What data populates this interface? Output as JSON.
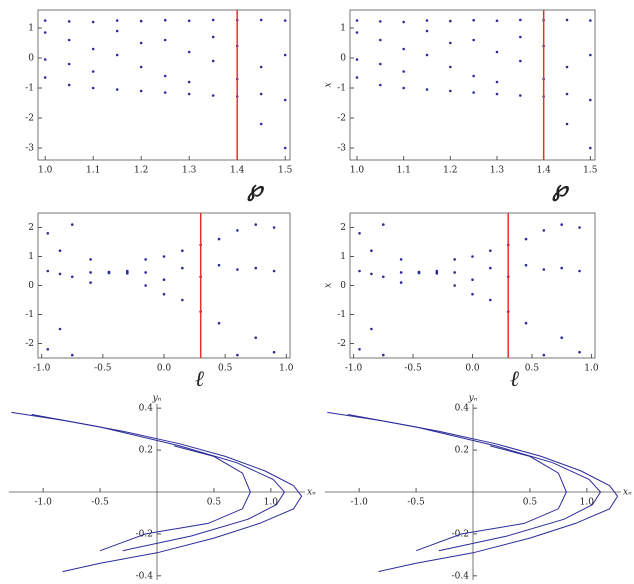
{
  "chart_data": [
    {
      "type": "scatter",
      "xlabel": "℘",
      "xlim": [
        0.985,
        1.51
      ],
      "ylim": [
        -3.4,
        1.6
      ],
      "xticks": [
        {
          "value": 1,
          "label": "1.0"
        },
        {
          "value": 1.1,
          "label": "1.1"
        },
        {
          "value": 1.2,
          "label": "1.2"
        },
        {
          "value": 1.3,
          "label": "1.3"
        },
        {
          "value": 1.4,
          "label": "1.4"
        },
        {
          "value": 1.5,
          "label": "1.5"
        }
      ],
      "yticks": [
        1,
        0,
        -1,
        -2,
        -3
      ],
      "color": "#2b2b9a",
      "vline": 1.4,
      "vline_color": "#e8312a",
      "axes_style": "box",
      "x": [
        1.0,
        1.0,
        1.0,
        1.0,
        1.05,
        1.05,
        1.05,
        1.05,
        1.1,
        1.1,
        1.1,
        1.1,
        1.15,
        1.15,
        1.15,
        1.15,
        1.2,
        1.2,
        1.2,
        1.2,
        1.25,
        1.25,
        1.25,
        1.25,
        1.3,
        1.3,
        1.3,
        1.3,
        1.35,
        1.35,
        1.35,
        1.35,
        1.4,
        1.4,
        1.4,
        1.4,
        1.45,
        1.45,
        1.45,
        1.45,
        1.5,
        1.5,
        1.5,
        1.5
      ],
      "values": [
        1.25,
        0.85,
        -0.05,
        -0.65,
        1.22,
        0.6,
        -0.2,
        -0.9,
        1.2,
        0.3,
        -0.45,
        -1.0,
        1.25,
        0.9,
        0.1,
        -1.05,
        1.23,
        0.5,
        -0.3,
        -1.1,
        1.26,
        0.6,
        -0.6,
        -1.15,
        1.24,
        0.2,
        -0.8,
        -1.2,
        1.27,
        0.7,
        -0.1,
        -1.25,
        1.26,
        0.4,
        -0.7,
        -1.28,
        1.27,
        -0.3,
        -1.2,
        -2.2,
        1.25,
        0.1,
        -1.4,
        -3.0
      ]
    },
    {
      "type": "scatter",
      "xlabel": "℘",
      "ylabel": "x",
      "xlim": [
        0.985,
        1.51
      ],
      "ylim": [
        -3.4,
        1.6
      ],
      "xticks": [
        {
          "value": 1,
          "label": "1.0"
        },
        {
          "value": 1.1,
          "label": "1.1"
        },
        {
          "value": 1.2,
          "label": "1.2"
        },
        {
          "value": 1.3,
          "label": "1.3"
        },
        {
          "value": 1.4,
          "label": "1.4"
        },
        {
          "value": 1.5,
          "label": "1.5"
        }
      ],
      "yticks": [
        1,
        0,
        -1,
        -2,
        -3
      ],
      "color": "#2b2b9a",
      "vline": 1.4,
      "vline_color": "#e8312a",
      "axes_style": "box",
      "x": [
        1.0,
        1.0,
        1.0,
        1.0,
        1.05,
        1.05,
        1.05,
        1.05,
        1.1,
        1.1,
        1.1,
        1.1,
        1.15,
        1.15,
        1.15,
        1.15,
        1.2,
        1.2,
        1.2,
        1.2,
        1.25,
        1.25,
        1.25,
        1.25,
        1.3,
        1.3,
        1.3,
        1.3,
        1.35,
        1.35,
        1.35,
        1.35,
        1.4,
        1.4,
        1.4,
        1.4,
        1.45,
        1.45,
        1.45,
        1.45,
        1.5,
        1.5,
        1.5,
        1.5
      ],
      "values": [
        1.25,
        0.85,
        -0.05,
        -0.65,
        1.22,
        0.6,
        -0.2,
        -0.9,
        1.2,
        0.3,
        -0.45,
        -1.0,
        1.25,
        0.9,
        0.1,
        -1.05,
        1.23,
        0.5,
        -0.3,
        -1.1,
        1.26,
        0.6,
        -0.6,
        -1.15,
        1.24,
        0.2,
        -0.8,
        -1.2,
        1.27,
        0.7,
        -0.1,
        -1.25,
        1.26,
        0.4,
        -0.7,
        -1.28,
        1.27,
        -0.3,
        -1.2,
        -2.2,
        1.25,
        0.1,
        -1.4,
        -3.0
      ]
    },
    {
      "type": "scatter",
      "xlabel": "ℓ",
      "xlim": [
        -1.03,
        1.03
      ],
      "ylim": [
        -2.5,
        2.5
      ],
      "xticks": [
        {
          "value": -1,
          "label": "-1.0"
        },
        {
          "value": -0.5,
          "label": "-0.5"
        },
        {
          "value": 0,
          "label": "0.0"
        },
        0.5,
        {
          "value": 1,
          "label": "1.0"
        }
      ],
      "yticks": [
        2,
        1,
        0,
        -1,
        -2
      ],
      "color": "#2b2b9a",
      "vline": 0.3,
      "vline_color": "#e8312a",
      "axes_style": "box",
      "x": [
        -0.95,
        -0.95,
        -0.95,
        -0.85,
        -0.85,
        -0.85,
        -0.75,
        -0.75,
        -0.75,
        -0.6,
        -0.6,
        -0.6,
        -0.45,
        -0.45,
        -0.45,
        -0.3,
        -0.3,
        -0.3,
        -0.15,
        -0.15,
        -0.15,
        0.0,
        0.0,
        0.0,
        0.15,
        0.15,
        0.15,
        0.3,
        0.3,
        0.3,
        0.45,
        0.45,
        0.45,
        0.6,
        0.6,
        0.6,
        0.75,
        0.75,
        0.75,
        0.9,
        0.9,
        0.9
      ],
      "values": [
        1.8,
        0.5,
        -2.2,
        1.2,
        0.4,
        -1.5,
        2.1,
        0.3,
        -2.4,
        0.9,
        0.45,
        0.1,
        0.47,
        0.45,
        0.43,
        0.5,
        0.45,
        0.42,
        0.9,
        0.0,
        0.45,
        1.0,
        -0.3,
        0.2,
        1.2,
        -0.5,
        0.6,
        1.4,
        -0.9,
        0.3,
        1.6,
        -1.3,
        0.7,
        1.9,
        0.55,
        -2.4,
        2.1,
        0.6,
        -1.8,
        2.0,
        0.5,
        -2.3
      ]
    },
    {
      "type": "scatter",
      "xlabel": "ℓ",
      "ylabel": "x",
      "xlim": [
        -1.03,
        1.03
      ],
      "ylim": [
        -2.5,
        2.5
      ],
      "xticks": [
        {
          "value": -1,
          "label": "-1.0"
        },
        {
          "value": -0.5,
          "label": "-0.5"
        },
        {
          "value": 0,
          "label": "0.0"
        },
        0.5,
        {
          "value": 1,
          "label": "1.0"
        }
      ],
      "yticks": [
        2,
        1,
        0,
        -1,
        -2
      ],
      "color": "#2b2b9a",
      "vline": 0.3,
      "vline_color": "#e8312a",
      "axes_style": "box",
      "x": [
        -0.95,
        -0.95,
        -0.95,
        -0.85,
        -0.85,
        -0.85,
        -0.75,
        -0.75,
        -0.75,
        -0.6,
        -0.6,
        -0.6,
        -0.45,
        -0.45,
        -0.45,
        -0.3,
        -0.3,
        -0.3,
        -0.15,
        -0.15,
        -0.15,
        0.0,
        0.0,
        0.0,
        0.15,
        0.15,
        0.15,
        0.3,
        0.3,
        0.3,
        0.45,
        0.45,
        0.45,
        0.6,
        0.6,
        0.6,
        0.75,
        0.75,
        0.75,
        0.9,
        0.9,
        0.9
      ],
      "values": [
        1.8,
        0.5,
        -2.2,
        1.2,
        0.4,
        -1.5,
        2.1,
        0.3,
        -2.4,
        0.9,
        0.45,
        0.1,
        0.47,
        0.45,
        0.43,
        0.5,
        0.45,
        0.42,
        0.9,
        0.0,
        0.45,
        1.0,
        -0.3,
        0.2,
        1.2,
        -0.5,
        0.6,
        1.4,
        -0.9,
        0.3,
        1.6,
        -1.3,
        0.7,
        1.9,
        0.55,
        -2.4,
        2.1,
        0.6,
        -1.8,
        2.0,
        0.5,
        -2.3
      ]
    },
    {
      "type": "line",
      "xlabel": "xₙ",
      "ylabel": "yₙ",
      "xlim": [
        -1.3,
        1.3
      ],
      "ylim": [
        -0.42,
        0.42
      ],
      "axes_style": "cross",
      "xticks": [
        {
          "value": -1,
          "label": "-1.0"
        },
        -0.5,
        0.5,
        {
          "value": 1,
          "label": "1.0"
        }
      ],
      "yticks": [
        0.4,
        0.2,
        -0.2,
        -0.4
      ],
      "series": [
        {
          "color": "#2b2b9a",
          "x": [
            -1.28,
            -0.8,
            -0.3,
            0.2,
            0.6,
            0.95,
            1.2,
            1.27,
            1.2,
            0.9,
            0.5,
            0.0,
            -0.5,
            -0.83
          ],
          "values": [
            0.38,
            0.34,
            0.29,
            0.23,
            0.17,
            0.1,
            0.03,
            -0.02,
            -0.08,
            -0.15,
            -0.22,
            -0.29,
            -0.34,
            -0.38
          ]
        },
        {
          "color": "#2b2b9a",
          "x": [
            -1.1,
            -0.5,
            0.2,
            0.7,
            1.02,
            1.12,
            1.05,
            0.8,
            0.3,
            -0.3
          ],
          "values": [
            0.37,
            0.31,
            0.22,
            0.14,
            0.06,
            0.0,
            -0.06,
            -0.13,
            -0.21,
            -0.28
          ]
        },
        {
          "color": "#2b2b9a",
          "x": [
            0.15,
            0.5,
            0.75,
            0.82,
            0.75,
            0.45,
            -0.1,
            -0.5
          ],
          "values": [
            0.22,
            0.17,
            0.09,
            0.0,
            -0.08,
            -0.15,
            -0.2,
            -0.28
          ]
        }
      ]
    },
    {
      "type": "line",
      "xlabel": "xₙ",
      "ylabel": "yₙ",
      "xlim": [
        -1.3,
        1.3
      ],
      "ylim": [
        -0.42,
        0.42
      ],
      "axes_style": "cross",
      "xticks": [
        {
          "value": -1,
          "label": "-1.0"
        },
        -0.5,
        0.5,
        {
          "value": 1,
          "label": "1.0"
        }
      ],
      "yticks": [
        0.4,
        0.2,
        -0.2,
        -0.4
      ],
      "series": [
        {
          "color": "#2b2b9a",
          "x": [
            -1.28,
            -0.8,
            -0.3,
            0.2,
            0.6,
            0.95,
            1.2,
            1.27,
            1.2,
            0.9,
            0.5,
            0.0,
            -0.5,
            -0.83
          ],
          "values": [
            0.38,
            0.34,
            0.29,
            0.23,
            0.17,
            0.1,
            0.03,
            -0.02,
            -0.08,
            -0.15,
            -0.22,
            -0.29,
            -0.34,
            -0.38
          ]
        },
        {
          "color": "#2b2b9a",
          "x": [
            -1.1,
            -0.5,
            0.2,
            0.7,
            1.02,
            1.12,
            1.05,
            0.8,
            0.3,
            -0.3
          ],
          "values": [
            0.37,
            0.31,
            0.22,
            0.14,
            0.06,
            0.0,
            -0.06,
            -0.13,
            -0.21,
            -0.28
          ]
        },
        {
          "color": "#2b2b9a",
          "x": [
            0.15,
            0.5,
            0.75,
            0.82,
            0.75,
            0.45,
            -0.1,
            -0.5
          ],
          "values": [
            0.22,
            0.17,
            0.09,
            0.0,
            -0.08,
            -0.15,
            -0.2,
            -0.28
          ]
        }
      ]
    }
  ]
}
